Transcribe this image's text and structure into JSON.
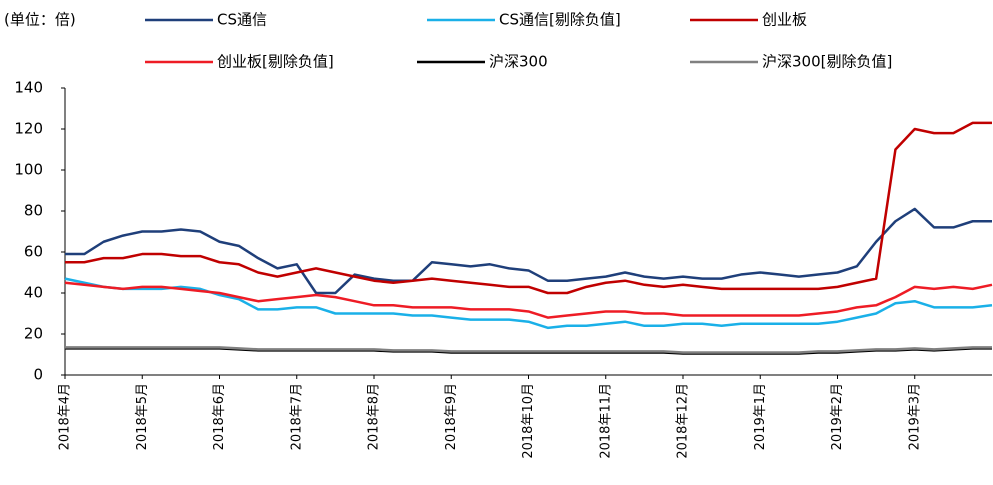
{
  "chart_data": {
    "type": "line",
    "unit_label": "(单位：倍)",
    "categories": [
      "2018年4月",
      null,
      null,
      null,
      "2018年5月",
      null,
      null,
      null,
      "2018年6月",
      null,
      null,
      null,
      "2018年7月",
      null,
      null,
      null,
      "2018年8月",
      null,
      null,
      null,
      "2018年9月",
      null,
      null,
      null,
      "2018年10月",
      null,
      null,
      null,
      "2018年11月",
      null,
      null,
      null,
      "2018年12月",
      null,
      null,
      null,
      "2019年1月",
      null,
      null,
      null,
      "2019年2月",
      null,
      null,
      null,
      "2019年3月",
      null,
      null,
      null,
      null
    ],
    "series": [
      {
        "name": "CS通信",
        "color": "#1f3f7a",
        "values": [
          59,
          59,
          65,
          68,
          70,
          70,
          71,
          70,
          65,
          63,
          57,
          52,
          54,
          40,
          40,
          49,
          47,
          46,
          46,
          55,
          54,
          53,
          54,
          52,
          51,
          46,
          46,
          47,
          48,
          50,
          48,
          47,
          48,
          47,
          47,
          49,
          50,
          49,
          48,
          49,
          50,
          53,
          65,
          75,
          81,
          72,
          72,
          75,
          75
        ]
      },
      {
        "name": "CS通信[剔除负值]",
        "color": "#1ab0e8",
        "values": [
          47,
          45,
          43,
          42,
          42,
          42,
          43,
          42,
          39,
          37,
          32,
          32,
          33,
          33,
          30,
          30,
          30,
          30,
          29,
          29,
          28,
          27,
          27,
          27,
          26,
          23,
          24,
          24,
          25,
          26,
          24,
          24,
          25,
          25,
          24,
          25,
          25,
          25,
          25,
          25,
          26,
          28,
          30,
          35,
          36,
          33,
          33,
          33,
          34
        ]
      },
      {
        "name": "创业板",
        "color": "#c00000",
        "values": [
          55,
          55,
          57,
          57,
          59,
          59,
          58,
          58,
          55,
          54,
          50,
          48,
          50,
          52,
          50,
          48,
          46,
          45,
          46,
          47,
          46,
          45,
          44,
          43,
          43,
          40,
          40,
          43,
          45,
          46,
          44,
          43,
          44,
          43,
          42,
          42,
          42,
          42,
          42,
          42,
          43,
          45,
          47,
          110,
          120,
          118,
          118,
          123,
          123
        ]
      },
      {
        "name": "创业板[剔除负值]",
        "color": "#ee1c25",
        "values": [
          45,
          44,
          43,
          42,
          43,
          43,
          42,
          41,
          40,
          38,
          36,
          37,
          38,
          39,
          38,
          36,
          34,
          34,
          33,
          33,
          33,
          32,
          32,
          32,
          31,
          28,
          29,
          30,
          31,
          31,
          30,
          30,
          29,
          29,
          29,
          29,
          29,
          29,
          29,
          30,
          31,
          33,
          34,
          38,
          43,
          42,
          43,
          42,
          44
        ]
      },
      {
        "name": "沪深300",
        "color": "#000000",
        "values": [
          13,
          13,
          13,
          13,
          13,
          13,
          13,
          13,
          13,
          12.5,
          12,
          12,
          12,
          12,
          12,
          12,
          12,
          11.5,
          11.5,
          11.5,
          11,
          11,
          11,
          11,
          11,
          11,
          11,
          11,
          11,
          11,
          11,
          11,
          10.5,
          10.5,
          10.5,
          10.5,
          10.5,
          10.5,
          10.5,
          11,
          11,
          11.5,
          12,
          12,
          12.5,
          12,
          12.5,
          13,
          13
        ]
      },
      {
        "name": "沪深300[剔除负值]",
        "color": "#808080",
        "values": [
          13.5,
          13.5,
          13.5,
          13.5,
          13.5,
          13.5,
          13.5,
          13.5,
          13.5,
          13,
          12.5,
          12.5,
          12.5,
          12.5,
          12.5,
          12.5,
          12.5,
          12,
          12,
          12,
          11.5,
          11.5,
          11.5,
          11.5,
          11.5,
          11.5,
          11.5,
          11.5,
          11.5,
          11.5,
          11.5,
          11.5,
          11,
          11,
          11,
          11,
          11,
          11,
          11,
          11.5,
          11.5,
          12,
          12.5,
          12.5,
          13,
          12.5,
          13,
          13.5,
          13.5
        ]
      }
    ],
    "ylim": [
      0,
      140
    ],
    "yticks": [
      0,
      20,
      40,
      60,
      80,
      100,
      120,
      140
    ],
    "grid": false
  }
}
